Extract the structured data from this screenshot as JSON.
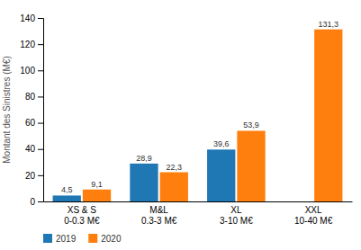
{
  "chart_data": {
    "type": "bar",
    "categories": [
      "XS & S\n0-0.3 M€",
      "M&L\n0.3-3 M€",
      "XL\n3-10 M€",
      "XXL\n10-40 M€"
    ],
    "series": [
      {
        "name": "2019",
        "values": [
          4.5,
          28.9,
          39.6,
          0
        ],
        "value_labels": [
          "4,5",
          "28,9",
          "39,6",
          null
        ]
      },
      {
        "name": "2020",
        "values": [
          9.1,
          22.3,
          53.9,
          131.3
        ],
        "value_labels": [
          "9,1",
          "22,3",
          "53,9",
          "131,3"
        ]
      }
    ],
    "ylabel": "Montant des Sinistres (M€)",
    "ylim": [
      0,
      140
    ],
    "yticks": [
      0,
      20,
      40,
      60,
      80,
      100,
      120,
      140
    ],
    "grid": false,
    "legend": "bottom",
    "data_labels": true
  }
}
